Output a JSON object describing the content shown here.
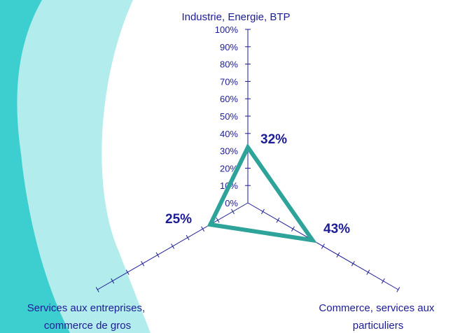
{
  "chart_data": {
    "type": "radar",
    "axes": [
      "Industrie, Energie, BTP",
      "Commerce, services aux particuliers",
      "Services aux entreprises, commerce de gros"
    ],
    "values": [
      32,
      43,
      25
    ],
    "value_labels": [
      "32%",
      "43%",
      "25%"
    ],
    "rmin": 0,
    "rmax": 100,
    "tick_labels": [
      "0%",
      "10%",
      "20%",
      "30%",
      "40%",
      "50%",
      "60%",
      "70%",
      "80%",
      "90%",
      "100%"
    ],
    "grid": false,
    "legend": "none"
  },
  "colors": {
    "background_dark": "#3dcfcf",
    "background_light": "#b3ecec",
    "axis": "#1c1c96",
    "text": "#1c1c96",
    "series": "#2ea39a"
  }
}
